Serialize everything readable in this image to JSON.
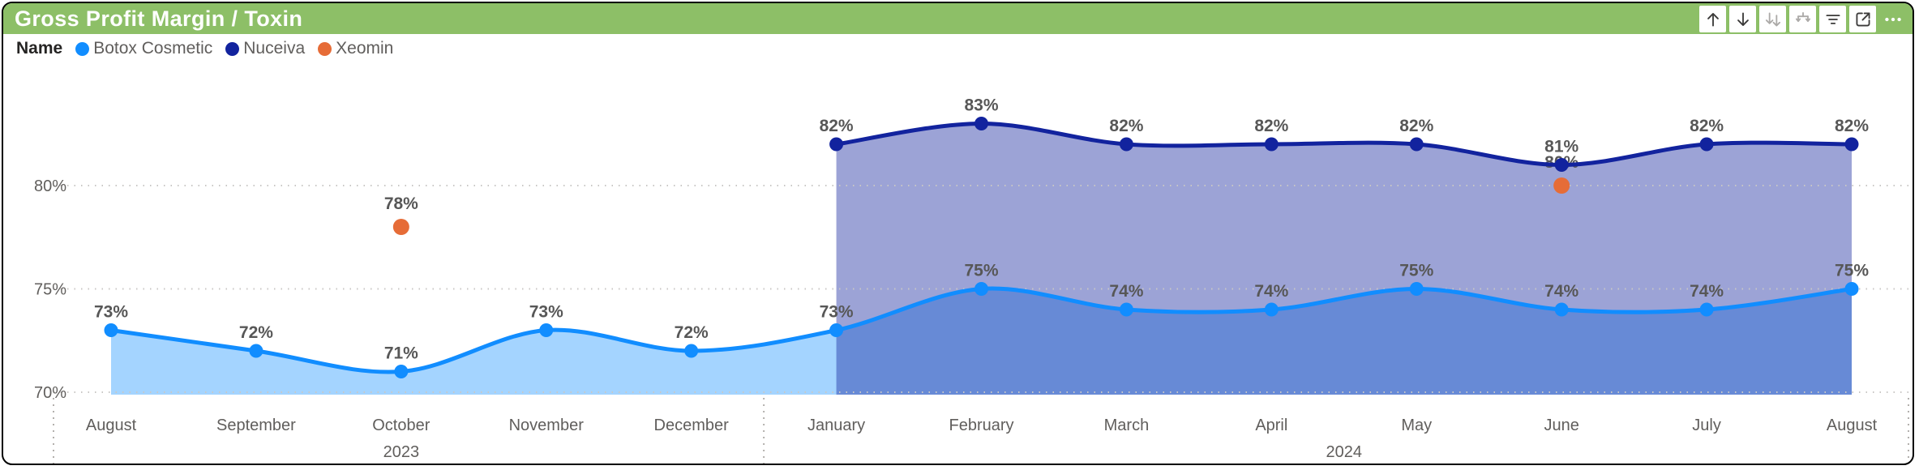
{
  "header": {
    "title": "Gross Profit Margin / Toxin"
  },
  "toolbar": {
    "buttons": [
      {
        "icon": "drill-up"
      },
      {
        "icon": "drill-down"
      },
      {
        "icon": "drill-down-level",
        "disabled": true
      },
      {
        "icon": "expand-hierarchy",
        "disabled": true
      },
      {
        "icon": "filter"
      },
      {
        "icon": "focus-mode"
      },
      {
        "icon": "more-options",
        "boxless": true
      }
    ]
  },
  "legend": {
    "label": "Name",
    "items": [
      {
        "name": "Botox Cosmetic",
        "color": "#118DFF"
      },
      {
        "name": "Nuceiva",
        "color": "#12239E"
      },
      {
        "name": "Xeomin",
        "color": "#E66C37"
      }
    ]
  },
  "colors": {
    "header_green": "#8DBF67",
    "gridline": "#C9C7C5",
    "axis_text": "#605E5C",
    "data_label": "#575757"
  },
  "chart_data": {
    "type": "area",
    "title": "Gross Profit Margin / Toxin",
    "categories": [
      "August",
      "September",
      "October",
      "November",
      "December",
      "January",
      "February",
      "March",
      "April",
      "May",
      "June",
      "July",
      "August"
    ],
    "x_groups": [
      {
        "label": "2023",
        "from": 0,
        "to": 4
      },
      {
        "label": "2024",
        "from": 5,
        "to": 12
      }
    ],
    "y_ticks": [
      "70%",
      "75%",
      "80%"
    ],
    "ylim": [
      70,
      85.5
    ],
    "grid": "dotted-horizontal",
    "legend_position": "top-left",
    "data_label_format": "integer percent",
    "series": [
      {
        "name": "Botox Cosmetic",
        "type": "area",
        "color": "#118DFF",
        "fill_opacity": 0.38,
        "values": [
          73,
          72,
          71,
          73,
          72,
          73,
          75,
          74,
          74,
          75,
          74,
          74,
          75
        ]
      },
      {
        "name": "Nuceiva",
        "type": "area",
        "color": "#12239E",
        "fill_opacity": 0.42,
        "values": [
          null,
          null,
          null,
          null,
          null,
          82,
          83,
          82,
          82,
          82,
          81,
          82,
          82
        ]
      },
      {
        "name": "Xeomin",
        "type": "scatter",
        "color": "#E66C37",
        "values": [
          null,
          null,
          78,
          null,
          null,
          null,
          null,
          null,
          null,
          null,
          80,
          null,
          null
        ]
      }
    ]
  }
}
